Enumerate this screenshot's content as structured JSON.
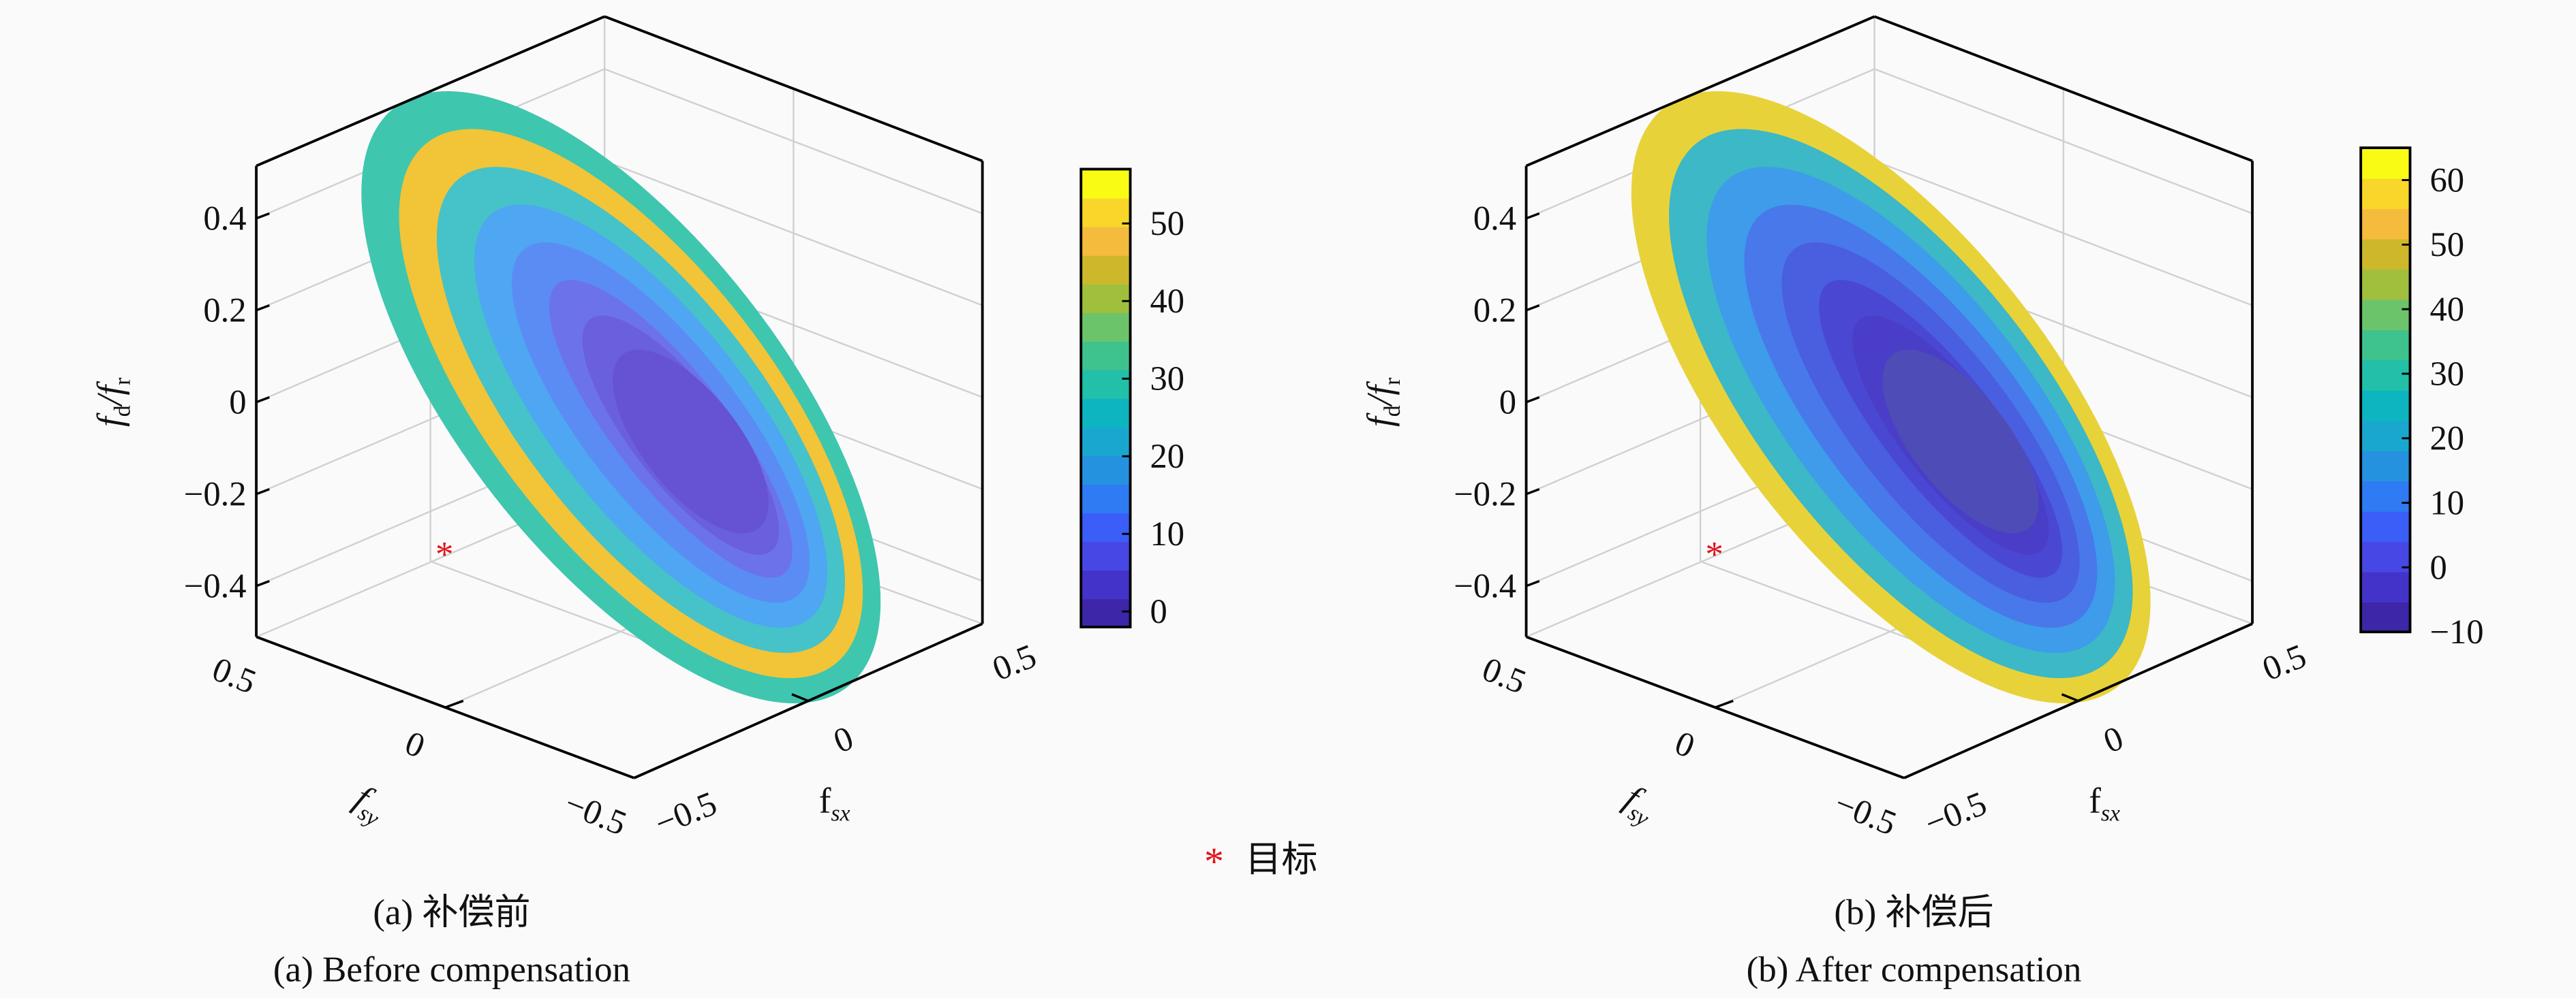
{
  "chart_data": [
    {
      "type": "surface",
      "panel": "a",
      "zlabel": "f_d / f_r",
      "xlabel": "f_sx",
      "ylabel": "f_sy",
      "zticks": [
        "0.4",
        "0.2",
        "0",
        "−0.2",
        "−0.4"
      ],
      "xticks": [
        "−0.5",
        "0",
        "0.5"
      ],
      "yticks": [
        "0.5",
        "0",
        "−0.5"
      ],
      "zlim": [
        -0.5,
        0.5
      ],
      "xlim": [
        -0.5,
        0.5
      ],
      "ylim": [
        -0.5,
        0.5
      ],
      "colorbar": {
        "ticks": [
          "0",
          "10",
          "20",
          "30",
          "40",
          "50"
        ],
        "tick_values": [
          0,
          10,
          20,
          30,
          40,
          50
        ],
        "range": [
          -2,
          57
        ]
      },
      "bands": [
        "#3fc6ae",
        "#f2c438",
        "#45c3c8",
        "#4fa6f2",
        "#5b8cf4",
        "#6c73ea",
        "#6a5fdc",
        "#6553d4"
      ],
      "target_marker": {
        "label": "目标",
        "color": "#e0141e"
      },
      "caption_cn": "(a) 补偿前",
      "caption_en": "(a) Before compensation"
    },
    {
      "type": "surface",
      "panel": "b",
      "zlabel": "f_d / f_r",
      "xlabel": "f_sx",
      "ylabel": "f_sy",
      "zticks": [
        "0.4",
        "0.2",
        "0",
        "−0.2",
        "−0.4"
      ],
      "xticks": [
        "−0.5",
        "0",
        "0.5"
      ],
      "yticks": [
        "0.5",
        "0",
        "−0.5"
      ],
      "zlim": [
        -0.5,
        0.5
      ],
      "xlim": [
        -0.5,
        0.5
      ],
      "ylim": [
        -0.5,
        0.5
      ],
      "colorbar": {
        "ticks": [
          "−10",
          "0",
          "10",
          "20",
          "30",
          "40",
          "50",
          "60"
        ],
        "tick_values": [
          -10,
          0,
          10,
          20,
          30,
          40,
          50,
          60
        ],
        "range": [
          -10,
          65
        ]
      },
      "bands": [
        "#e8d23a",
        "#3cb8c6",
        "#3e9ceb",
        "#4878ea",
        "#4a5ee0",
        "#4a48d2",
        "#4a3ec8",
        "#4e4cb6"
      ],
      "target_marker": {
        "label": "目标",
        "color": "#e0141e"
      },
      "caption_cn": "(b) 补偿后",
      "caption_en": "(b) After compensation"
    }
  ],
  "colormap": [
    "#3e26a8",
    "#4433c8",
    "#4747e6",
    "#3b5ef8",
    "#2e7bf3",
    "#2592e0",
    "#1aa7cf",
    "#0db5c0",
    "#22bfa9",
    "#3fc38e",
    "#6cc46a",
    "#a0bf3d",
    "#cdb82c",
    "#f5bb3c",
    "#f8d62a",
    "#f9fb15"
  ],
  "legend": {
    "label": "目标"
  }
}
